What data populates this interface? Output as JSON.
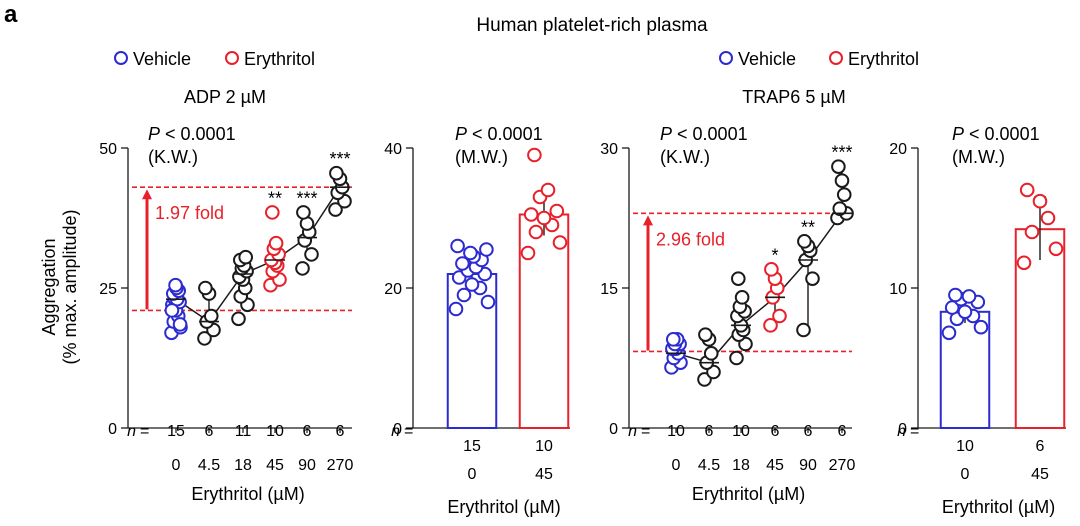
{
  "figure": {
    "panel_letter": "a",
    "title": "Human platelet-rich plasma",
    "y_axis_label_line1": "Aggregation",
    "y_axis_label_line2": "(% max. amplitude)",
    "legend_left": [
      "Vehicle",
      "Erythritol"
    ],
    "legend_right": [
      "Vehicle",
      "Erythritol"
    ],
    "subtitle_left": "ADP 2 µM",
    "subtitle_right": "TRAP6 5 µM",
    "colors": {
      "vehicle": "#2b2bd0",
      "erythritol": "#e8202a",
      "black": "#1a1a1a"
    }
  },
  "chart_data": [
    {
      "type": "scatter",
      "title": "ADP 2 µM",
      "test": "P < 0.0001",
      "test_name": "(K.W.)",
      "xlabel": "Erythritol (µM)",
      "ylabel": "Aggregation (% max. amplitude)",
      "ylim": [
        0,
        50
      ],
      "yticks": [
        "0",
        "25",
        "50"
      ],
      "categories": [
        "0",
        "4.5",
        "18",
        "45",
        "90",
        "270"
      ],
      "n_prefix": "n =",
      "n": [
        "15",
        "6",
        "11",
        "10",
        "6",
        "6"
      ],
      "point_colors": [
        "vehicle",
        "black",
        "black",
        "erythritol",
        "black",
        "black"
      ],
      "means": [
        23,
        19,
        27.5,
        30,
        34,
        43
      ],
      "errors": [
        [
          21.5,
          24.5
        ],
        [
          16.5,
          24.5
        ],
        [
          22,
          30
        ],
        [
          27.5,
          33
        ],
        [
          30,
          36.5
        ],
        [
          40,
          45.5
        ]
      ],
      "points": [
        [
          17,
          18,
          19,
          20,
          21,
          22,
          22.5,
          23,
          23,
          24,
          24.5,
          25,
          25.5,
          18.5,
          21
        ],
        [
          16,
          17.5,
          19,
          20,
          24,
          25
        ],
        [
          19.5,
          22,
          23.5,
          25,
          26.5,
          27,
          28,
          28.5,
          29,
          30,
          30.5
        ],
        [
          25.5,
          26.5,
          28,
          29,
          29.5,
          30,
          31,
          32,
          33,
          38.5
        ],
        [
          28.5,
          31,
          33.5,
          35,
          36.5,
          38.5
        ],
        [
          39,
          40.5,
          42,
          43,
          44.5,
          45.5
        ]
      ],
      "significance": [
        "",
        "",
        "",
        "**",
        "***",
        "***"
      ],
      "fold_label": "1.97 fold",
      "ref_lines": [
        21,
        43
      ]
    },
    {
      "type": "bar",
      "test": "P < 0.0001",
      "test_name": "(M.W.)",
      "xlabel": "Erythritol (µM)",
      "ylim": [
        0,
        40
      ],
      "yticks": [
        "0",
        "20",
        "40"
      ],
      "categories": [
        "0",
        "45"
      ],
      "n_prefix": "n =",
      "n": [
        "15",
        "10"
      ],
      "bar_colors": [
        "vehicle",
        "erythritol"
      ],
      "values": [
        22,
        30.5
      ],
      "errors": [
        [
          20.5,
          23.5
        ],
        [
          27.5,
          33.5
        ]
      ],
      "points": [
        [
          17,
          18,
          19,
          20,
          20.5,
          21.5,
          22,
          22.5,
          23,
          23.5,
          24,
          24.5,
          25,
          25.5,
          26
        ],
        [
          25,
          26.5,
          28,
          29,
          30,
          30.5,
          31,
          33,
          34,
          39
        ]
      ]
    },
    {
      "type": "scatter",
      "title": "TRAP6 5 µM",
      "test": "P < 0.0001",
      "test_name": "(K.W.)",
      "xlabel": "Erythritol (µM)",
      "ylim": [
        0,
        30
      ],
      "yticks": [
        "0",
        "15",
        "30"
      ],
      "categories": [
        "0",
        "4.5",
        "18",
        "45",
        "90",
        "270"
      ],
      "n_prefix": "n =",
      "n": [
        "10",
        "6",
        "10",
        "6",
        "6",
        "6"
      ],
      "point_colors": [
        "vehicle",
        "black",
        "black",
        "erythritol",
        "black",
        "black"
      ],
      "means": [
        8,
        7,
        11,
        14,
        18,
        23
      ],
      "errors": [
        [
          7.5,
          8.8
        ],
        [
          5.5,
          9.5
        ],
        [
          9,
          13
        ],
        [
          11.5,
          16.5
        ],
        [
          10.5,
          20
        ],
        [
          22.5,
          28
        ]
      ],
      "points": [
        [
          6.5,
          7,
          7.5,
          8,
          8.5,
          8.5,
          9,
          9,
          9.5,
          9.5
        ],
        [
          5.2,
          6,
          7,
          8,
          9.5,
          10
        ],
        [
          7.5,
          9,
          10,
          10.5,
          11,
          12,
          12.5,
          13,
          14,
          16
        ],
        [
          11,
          12,
          14,
          15,
          16,
          17
        ],
        [
          10.5,
          16,
          18,
          19,
          19.5,
          20
        ],
        [
          22.5,
          23,
          23.5,
          25,
          26.5,
          28
        ]
      ],
      "significance": [
        "",
        "",
        "",
        "*",
        "**",
        "***"
      ],
      "fold_label": "2.96 fold",
      "ref_lines": [
        8.2,
        23
      ]
    },
    {
      "type": "bar",
      "test": "P < 0.0001",
      "test_name": "(M.W.)",
      "xlabel": "Erythritol (µM)",
      "ylim": [
        0,
        20
      ],
      "yticks": [
        "0",
        "10",
        "20"
      ],
      "categories": [
        "0",
        "45"
      ],
      "n_prefix": "n =",
      "n": [
        "10",
        "6"
      ],
      "bar_colors": [
        "vehicle",
        "erythritol"
      ],
      "values": [
        8.3,
        14.2
      ],
      "errors": [
        [
          7.5,
          9
        ],
        [
          12,
          16.5
        ]
      ],
      "points": [
        [
          6.8,
          7.2,
          7.8,
          8,
          8.3,
          8.6,
          9,
          9.2,
          9.4,
          9.5
        ],
        [
          11.8,
          12.8,
          14,
          15,
          16.2,
          17
        ]
      ]
    }
  ]
}
